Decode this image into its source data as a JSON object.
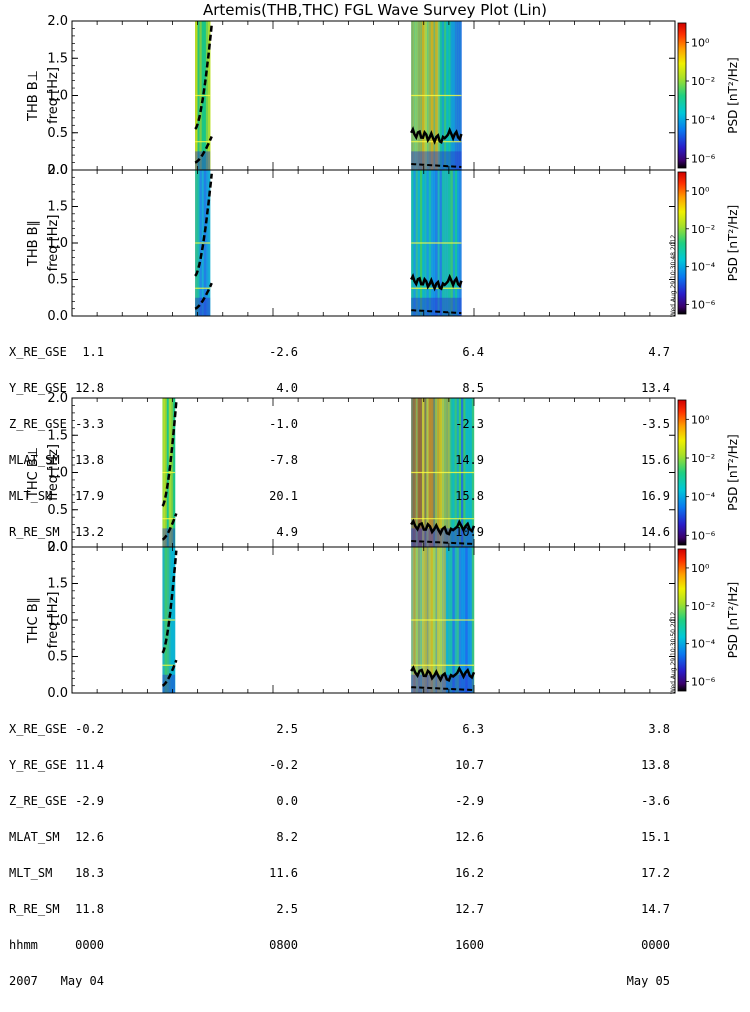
{
  "title": "Artemis(THB,THC) FGL Wave Survey Plot (Lin)",
  "colors": {
    "frame": "#000000",
    "gridline": "#ffff40",
    "background": "#ffffff"
  },
  "chart_data": {
    "type": "heatmap",
    "title": "Artemis(THB,THC) FGL Wave Survey Plot (Lin)",
    "panels": [
      {
        "id": "thb-perp",
        "probe": "THB",
        "label": "THB B⊥",
        "ylabel": "freq [Hz]",
        "ylim": [
          0,
          2.0
        ],
        "yticks": [
          "0.0",
          "0.5",
          "1.0",
          "1.5",
          "2.0"
        ],
        "cb_label": "PSD [nT²/Hz]",
        "cb_ticks": [
          "10⁰",
          "10⁻²",
          "10⁻⁴",
          "10⁻⁶"
        ],
        "timestamp": ""
      },
      {
        "id": "thb-par",
        "probe": "THB",
        "label": "THB B∥",
        "ylabel": "freq [Hz]",
        "ylim": [
          0,
          2.0
        ],
        "yticks": [
          "0.0",
          "0.5",
          "1.0",
          "1.5",
          "2.0"
        ],
        "cb_label": "PSD [nT²/Hz]",
        "cb_ticks": [
          "10⁰",
          "10⁻²",
          "10⁻⁴",
          "10⁻⁶"
        ],
        "timestamp": "Wed Aug 29 10:30:48 2012"
      },
      {
        "id": "thc-perp",
        "probe": "THC",
        "label": "THC B⊥",
        "ylabel": "freq [Hz]",
        "ylim": [
          0,
          2.0
        ],
        "yticks": [
          "0.0",
          "0.5",
          "1.0",
          "1.5",
          "2.0"
        ],
        "cb_label": "PSD [nT²/Hz]",
        "cb_ticks": [
          "10⁰",
          "10⁻²",
          "10⁻⁴",
          "10⁻⁶"
        ],
        "timestamp": ""
      },
      {
        "id": "thc-par",
        "probe": "THC",
        "label": "THC B∥",
        "ylabel": "freq [Hz]",
        "ylim": [
          0,
          2.0
        ],
        "yticks": [
          "0.0",
          "0.5",
          "1.0",
          "1.5",
          "2.0"
        ],
        "cb_label": "PSD [nT²/Hz]",
        "cb_ticks": [
          "10⁰",
          "10⁻²",
          "10⁻⁴",
          "10⁻⁶"
        ],
        "timestamp": "Wed Aug 29 10:30:50 2012"
      }
    ],
    "xlim_hours": [
      0,
      24
    ],
    "data_intervals_hours": {
      "THB": [
        [
          4.9,
          5.5
        ],
        [
          13.5,
          15.5
        ]
      ],
      "THC": [
        [
          3.6,
          4.1
        ],
        [
          13.5,
          16.0
        ]
      ]
    },
    "ephemeris": {
      "THB": {
        "labels": [
          "X_RE_GSE",
          "Y_RE_GSE",
          "Z_RE_GSE",
          "MLAT_SM",
          "MLT_SM",
          "R_RE_SM"
        ],
        "columns": [
          [
            "1.1",
            "12.8",
            "-3.3",
            "13.8",
            "17.9",
            "13.2"
          ],
          [
            "-2.6",
            "4.0",
            "-1.0",
            "-7.8",
            "20.1",
            "4.9"
          ],
          [
            "6.4",
            "8.5",
            "-2.3",
            "14.9",
            "15.8",
            "10.9"
          ],
          [
            "4.7",
            "13.4",
            "-3.5",
            "15.6",
            "16.9",
            "14.6"
          ]
        ]
      },
      "THC": {
        "labels": [
          "X_RE_GSE",
          "Y_RE_GSE",
          "Z_RE_GSE",
          "MLAT_SM",
          "MLT_SM",
          "R_RE_SM",
          "hhmm",
          "2007"
        ],
        "columns": [
          [
            "-0.2",
            "11.4",
            "-2.9",
            "12.6",
            "18.3",
            "11.8",
            "0000",
            "May 04"
          ],
          [
            "2.5",
            "-0.2",
            "0.0",
            "8.2",
            "11.6",
            "2.5",
            "0800",
            ""
          ],
          [
            "6.3",
            "10.7",
            "-2.9",
            "12.6",
            "16.2",
            "12.7",
            "1600",
            ""
          ],
          [
            "3.8",
            "13.8",
            "-3.6",
            "15.1",
            "17.2",
            "14.7",
            "0000",
            "May 05"
          ]
        ]
      }
    }
  }
}
